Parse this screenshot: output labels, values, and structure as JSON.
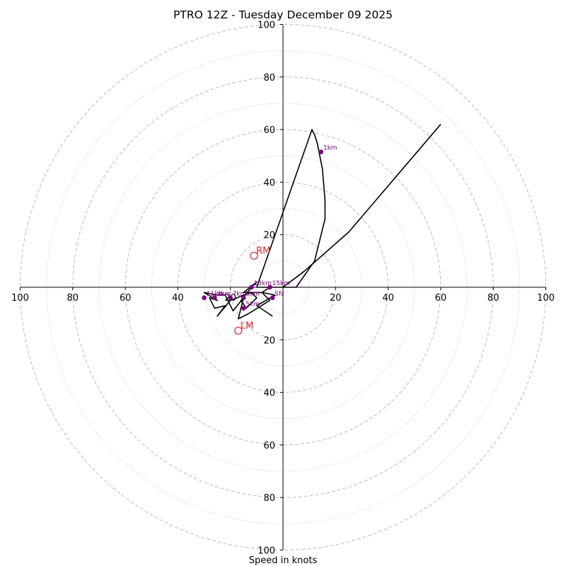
{
  "chart_data": {
    "type": "scatter",
    "subtype": "hodograph",
    "title": "PTRO 12Z - Tuesday December 09 2025",
    "xlabel": "Speed in knots",
    "ylabel": "",
    "xlim": [
      -100,
      100
    ],
    "ylim": [
      -100,
      100
    ],
    "grid": true,
    "rings_dashed": [
      20,
      40,
      60,
      80,
      100
    ],
    "rings_dotted": [
      10,
      30,
      50,
      70,
      90
    ],
    "axis_ticks": [
      20,
      40,
      60,
      80,
      100
    ],
    "axis_tick_labels": [
      "20",
      "40",
      "60",
      "80",
      "100"
    ],
    "colors": {
      "trace": "#000000",
      "height_marker": "#800080",
      "motion": "#d62728",
      "ring": "#bbbbbb",
      "axis": "#000000"
    },
    "series": [
      {
        "name": "wind trace",
        "points": [
          [
            -4,
            -11
          ],
          [
            -10,
            -7
          ],
          [
            -3,
            -3
          ],
          [
            -8,
            -2
          ],
          [
            -5,
            -5
          ],
          [
            -13,
            -10
          ],
          [
            -17,
            -12
          ],
          [
            -15,
            -4
          ],
          [
            -19,
            -9
          ],
          [
            -22,
            -3
          ],
          [
            -25,
            -3
          ],
          [
            -30,
            -2
          ],
          [
            -25,
            -5
          ],
          [
            -28,
            -4
          ],
          [
            -26,
            -8
          ],
          [
            -22,
            -7
          ],
          [
            -25,
            -11
          ],
          [
            -20,
            -5
          ],
          [
            -15,
            -3
          ],
          [
            -12,
            -2
          ],
          [
            -10,
            -4
          ],
          [
            -14,
            -8
          ],
          [
            -16,
            -5
          ],
          [
            -12,
            0
          ],
          [
            -10,
            2
          ],
          [
            -15,
            -2
          ],
          [
            -8,
            -2
          ],
          [
            -5,
            0
          ],
          [
            0,
            0
          ],
          [
            5,
            0
          ],
          [
            12,
            10
          ],
          [
            16,
            26
          ],
          [
            16,
            33
          ],
          [
            15,
            45
          ],
          [
            13,
            55
          ],
          [
            12,
            58
          ],
          [
            11,
            60
          ],
          [
            -10,
            0
          ],
          [
            -4,
            0
          ],
          [
            0,
            0
          ],
          [
            8,
            6
          ],
          [
            25,
            21
          ],
          [
            60,
            62
          ]
        ]
      }
    ],
    "height_markers": [
      {
        "label": "Sfc",
        "x": -4,
        "y": -4
      },
      {
        "label": "1km",
        "x": 14.5,
        "y": 51.5
      },
      {
        "label": "3km",
        "x": -15,
        "y": -4
      },
      {
        "label": "5km",
        "x": -15,
        "y": -8
      },
      {
        "label": "7km",
        "x": -20,
        "y": -4
      },
      {
        "label": "9km",
        "x": -26,
        "y": -4
      },
      {
        "label": "11km",
        "x": -30,
        "y": -4
      },
      {
        "label": "13km",
        "x": -12,
        "y": 0
      },
      {
        "label": "15km",
        "x": -5,
        "y": 0
      }
    ],
    "storm_motion": [
      {
        "label": "RM",
        "x": -11,
        "y": 12
      },
      {
        "label": "LM",
        "x": -17,
        "y": -16.5
      }
    ]
  }
}
